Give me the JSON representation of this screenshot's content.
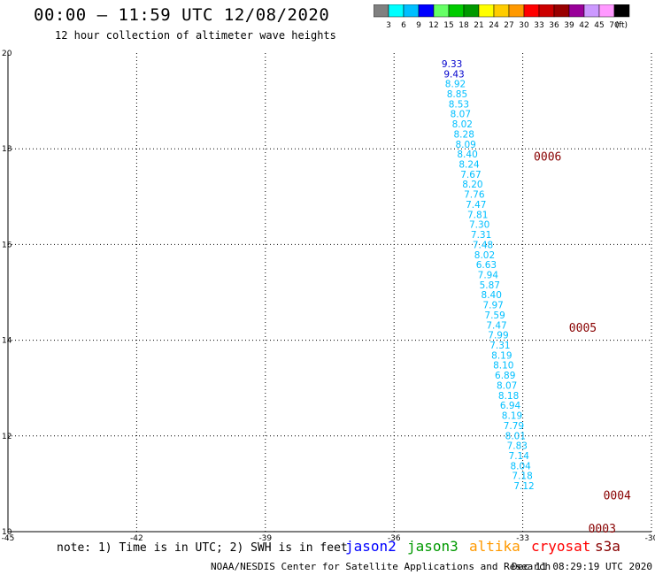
{
  "header": {
    "title": "00:00 – 11:59 UTC 12/08/2020",
    "subtitle": "12 hour collection of altimeter wave heights"
  },
  "colorbar": {
    "colors": [
      "#808080",
      "#00ffff",
      "#00bfff",
      "#0000ff",
      "#66ff66",
      "#00cc00",
      "#009900",
      "#ffff00",
      "#ffcc00",
      "#ff9900",
      "#ff0000",
      "#cc0000",
      "#990000",
      "#990099",
      "#cc99ff",
      "#ff99ff",
      "#000000"
    ],
    "labels": [
      "3",
      "6",
      "9",
      "12",
      "15",
      "18",
      "21",
      "24",
      "27",
      "30",
      "33",
      "36",
      "39",
      "42",
      "45",
      "70"
    ],
    "unit": "(ft)"
  },
  "chart_data": {
    "type": "scatter",
    "xlim": [
      -45,
      -30
    ],
    "ylim": [
      10,
      20
    ],
    "x_ticks": [
      "-45",
      "-42",
      "-39",
      "-36",
      "-33",
      "-30"
    ],
    "x_tick_values": [
      -45,
      -42,
      -39,
      -36,
      -33,
      -30
    ],
    "y_ticks": [
      "10",
      "12",
      "14",
      "16",
      "18",
      "20"
    ],
    "y_tick_values": [
      10,
      12,
      14,
      16,
      18,
      20
    ],
    "grid": true,
    "point_color": "#00bfff",
    "points": [
      {
        "lon": -34.65,
        "lat": 19.78,
        "label": "9.33",
        "color": "#0000cc"
      },
      {
        "lon": -34.6,
        "lat": 19.57,
        "label": "9.43",
        "color": "#0000cc"
      },
      {
        "lon": -34.57,
        "lat": 19.36,
        "label": "8.92"
      },
      {
        "lon": -34.53,
        "lat": 19.15,
        "label": "8.85"
      },
      {
        "lon": -34.49,
        "lat": 18.94,
        "label": "8.53"
      },
      {
        "lon": -34.45,
        "lat": 18.73,
        "label": "8.07"
      },
      {
        "lon": -34.41,
        "lat": 18.52,
        "label": "8.02"
      },
      {
        "lon": -34.37,
        "lat": 18.31,
        "label": "8.28"
      },
      {
        "lon": -34.33,
        "lat": 18.1,
        "label": "8.09"
      },
      {
        "lon": -34.29,
        "lat": 17.89,
        "label": "8.40"
      },
      {
        "lon": -34.25,
        "lat": 17.68,
        "label": "8.24"
      },
      {
        "lon": -34.21,
        "lat": 17.47,
        "label": "7.67"
      },
      {
        "lon": -34.17,
        "lat": 17.26,
        "label": "8.20"
      },
      {
        "lon": -34.13,
        "lat": 17.05,
        "label": "7.76"
      },
      {
        "lon": -34.09,
        "lat": 16.84,
        "label": "7.47"
      },
      {
        "lon": -34.05,
        "lat": 16.63,
        "label": "7.81"
      },
      {
        "lon": -34.01,
        "lat": 16.42,
        "label": "7.30"
      },
      {
        "lon": -33.97,
        "lat": 16.21,
        "label": "7.31"
      },
      {
        "lon": -33.93,
        "lat": 16.0,
        "label": "7.48"
      },
      {
        "lon": -33.89,
        "lat": 15.79,
        "label": "8.02"
      },
      {
        "lon": -33.85,
        "lat": 15.58,
        "label": "6.63"
      },
      {
        "lon": -33.81,
        "lat": 15.37,
        "label": "7.94"
      },
      {
        "lon": -33.77,
        "lat": 15.16,
        "label": "5.87"
      },
      {
        "lon": -33.73,
        "lat": 14.95,
        "label": "8.40"
      },
      {
        "lon": -33.69,
        "lat": 14.74,
        "label": "7.97"
      },
      {
        "lon": -33.65,
        "lat": 14.53,
        "label": "7.59"
      },
      {
        "lon": -33.61,
        "lat": 14.32,
        "label": "7.47"
      },
      {
        "lon": -33.57,
        "lat": 14.11,
        "label": "7.99"
      },
      {
        "lon": -33.53,
        "lat": 13.9,
        "label": "7.31"
      },
      {
        "lon": -33.49,
        "lat": 13.69,
        "label": "8.19"
      },
      {
        "lon": -33.45,
        "lat": 13.48,
        "label": "8.10"
      },
      {
        "lon": -33.41,
        "lat": 13.27,
        "label": "6.89"
      },
      {
        "lon": -33.37,
        "lat": 13.06,
        "label": "8.07"
      },
      {
        "lon": -33.33,
        "lat": 12.85,
        "label": "8.18"
      },
      {
        "lon": -33.29,
        "lat": 12.64,
        "label": "6.94"
      },
      {
        "lon": -33.25,
        "lat": 12.43,
        "label": "8.19"
      },
      {
        "lon": -33.21,
        "lat": 12.22,
        "label": "7.79"
      },
      {
        "lon": -33.17,
        "lat": 12.01,
        "label": "8.01"
      },
      {
        "lon": -33.13,
        "lat": 11.8,
        "label": "7.83"
      },
      {
        "lon": -33.09,
        "lat": 11.59,
        "label": "7.14"
      },
      {
        "lon": -33.05,
        "lat": 11.38,
        "label": "8.04"
      },
      {
        "lon": -33.01,
        "lat": 11.17,
        "label": "7.18"
      },
      {
        "lon": -32.97,
        "lat": 10.96,
        "label": "7.12"
      }
    ],
    "annotations": [
      {
        "text": "0006",
        "lon": -32.42,
        "lat": 17.85
      },
      {
        "text": "0005",
        "lon": -31.6,
        "lat": 14.27
      },
      {
        "text": "0004",
        "lon": -30.8,
        "lat": 10.77
      },
      {
        "text": "0003",
        "lon": -31.15,
        "lat": 10.07
      }
    ],
    "annotation_color": "#880000"
  },
  "footer": {
    "note": "note: 1) Time is in UTC; 2) SWH is in feet",
    "legend": [
      {
        "name": "jason2",
        "color": "#0000ff"
      },
      {
        "name": "jason3",
        "color": "#009900"
      },
      {
        "name": "altika",
        "color": "#ff9900"
      },
      {
        "name": "cryosat",
        "color": "#ff0000"
      },
      {
        "name": "s3a",
        "color": "#880000"
      }
    ],
    "credit": "NOAA/NESDIS Center for Satellite Applications and Research",
    "timestamp": "Dec 11 08:29:19 UTC 2020"
  }
}
